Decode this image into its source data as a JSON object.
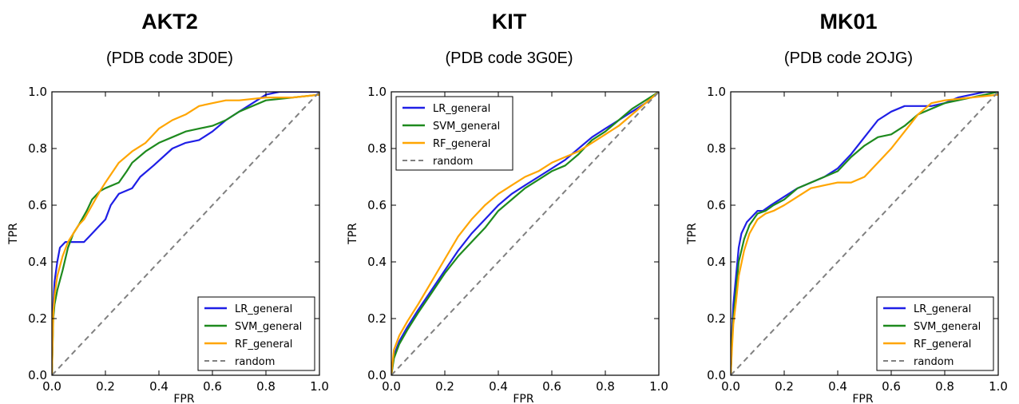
{
  "colors": {
    "LR_general": "#1f1fe6",
    "SVM_general": "#1e8a1e",
    "RF_general": "#ffa500",
    "random": "#808080"
  },
  "chart_data": [
    {
      "type": "line",
      "title": "AKT2",
      "subtitle": "(PDB code 3D0E)",
      "xlabel": "FPR",
      "ylabel": "TPR",
      "xlim": [
        0,
        1
      ],
      "ylim": [
        0,
        1
      ],
      "xticks": [
        "0.0",
        "0.2",
        "0.4",
        "0.6",
        "0.8",
        "1.0"
      ],
      "yticks": [
        "0.0",
        "0.2",
        "0.4",
        "0.6",
        "0.8",
        "1.0"
      ],
      "legend_position": "lower-right",
      "series": [
        {
          "name": "LR_general",
          "x": [
            0,
            0.005,
            0.01,
            0.02,
            0.03,
            0.05,
            0.07,
            0.1,
            0.12,
            0.14,
            0.17,
            0.2,
            0.22,
            0.25,
            0.3,
            0.33,
            0.38,
            0.45,
            0.5,
            0.55,
            0.6,
            0.65,
            0.7,
            0.75,
            0.8,
            0.85,
            1.0
          ],
          "y": [
            0,
            0.25,
            0.33,
            0.4,
            0.45,
            0.47,
            0.47,
            0.47,
            0.47,
            0.49,
            0.52,
            0.55,
            0.6,
            0.64,
            0.66,
            0.7,
            0.74,
            0.8,
            0.82,
            0.83,
            0.86,
            0.9,
            0.93,
            0.96,
            0.99,
            1.0,
            1.0
          ]
        },
        {
          "name": "SVM_general",
          "x": [
            0,
            0.005,
            0.01,
            0.02,
            0.04,
            0.06,
            0.08,
            0.1,
            0.13,
            0.15,
            0.18,
            0.2,
            0.25,
            0.28,
            0.3,
            0.35,
            0.4,
            0.45,
            0.5,
            0.55,
            0.6,
            0.65,
            0.7,
            0.8,
            0.9,
            1.0
          ],
          "y": [
            0,
            0.2,
            0.25,
            0.3,
            0.37,
            0.45,
            0.5,
            0.53,
            0.58,
            0.62,
            0.65,
            0.66,
            0.68,
            0.72,
            0.75,
            0.79,
            0.82,
            0.84,
            0.86,
            0.87,
            0.88,
            0.9,
            0.93,
            0.97,
            0.98,
            0.99
          ]
        },
        {
          "name": "RF_general",
          "x": [
            0,
            0.005,
            0.01,
            0.02,
            0.04,
            0.06,
            0.08,
            0.1,
            0.12,
            0.15,
            0.18,
            0.2,
            0.25,
            0.3,
            0.35,
            0.4,
            0.45,
            0.5,
            0.55,
            0.6,
            0.65,
            0.7,
            0.8,
            0.9,
            1.0
          ],
          "y": [
            0,
            0.22,
            0.28,
            0.35,
            0.42,
            0.47,
            0.5,
            0.53,
            0.55,
            0.6,
            0.65,
            0.68,
            0.75,
            0.79,
            0.82,
            0.87,
            0.9,
            0.92,
            0.95,
            0.96,
            0.97,
            0.97,
            0.98,
            0.98,
            0.99
          ]
        },
        {
          "name": "random",
          "x": [
            0,
            1
          ],
          "y": [
            0,
            1
          ]
        }
      ]
    },
    {
      "type": "line",
      "title": "KIT",
      "subtitle": "(PDB code 3G0E)",
      "xlabel": "FPR",
      "ylabel": "TPR",
      "xlim": [
        0,
        1
      ],
      "ylim": [
        0,
        1
      ],
      "xticks": [
        "0.0",
        "0.2",
        "0.4",
        "0.6",
        "0.8",
        "1.0"
      ],
      "yticks": [
        "0.0",
        "0.2",
        "0.4",
        "0.6",
        "0.8",
        "1.0"
      ],
      "legend_position": "upper-left",
      "series": [
        {
          "name": "LR_general",
          "x": [
            0,
            0.01,
            0.03,
            0.06,
            0.1,
            0.15,
            0.2,
            0.25,
            0.3,
            0.35,
            0.4,
            0.45,
            0.5,
            0.55,
            0.6,
            0.65,
            0.7,
            0.75,
            0.8,
            0.85,
            0.9,
            0.95,
            1.0
          ],
          "y": [
            0,
            0.07,
            0.12,
            0.17,
            0.23,
            0.3,
            0.37,
            0.44,
            0.5,
            0.55,
            0.6,
            0.64,
            0.67,
            0.7,
            0.73,
            0.76,
            0.8,
            0.84,
            0.87,
            0.9,
            0.93,
            0.96,
            1.0
          ]
        },
        {
          "name": "SVM_general",
          "x": [
            0,
            0.01,
            0.03,
            0.06,
            0.1,
            0.15,
            0.2,
            0.25,
            0.3,
            0.35,
            0.4,
            0.45,
            0.5,
            0.55,
            0.6,
            0.65,
            0.7,
            0.75,
            0.8,
            0.85,
            0.9,
            0.95,
            1.0
          ],
          "y": [
            0,
            0.06,
            0.11,
            0.16,
            0.22,
            0.29,
            0.36,
            0.42,
            0.47,
            0.52,
            0.58,
            0.62,
            0.66,
            0.69,
            0.72,
            0.74,
            0.78,
            0.83,
            0.86,
            0.9,
            0.94,
            0.97,
            1.0
          ]
        },
        {
          "name": "RF_general",
          "x": [
            0,
            0.01,
            0.03,
            0.06,
            0.1,
            0.15,
            0.2,
            0.25,
            0.3,
            0.35,
            0.4,
            0.45,
            0.5,
            0.55,
            0.6,
            0.65,
            0.7,
            0.75,
            0.8,
            0.85,
            0.9,
            0.95,
            1.0
          ],
          "y": [
            0,
            0.09,
            0.14,
            0.19,
            0.25,
            0.33,
            0.41,
            0.49,
            0.55,
            0.6,
            0.64,
            0.67,
            0.7,
            0.72,
            0.75,
            0.77,
            0.79,
            0.82,
            0.85,
            0.88,
            0.92,
            0.96,
            1.0
          ]
        },
        {
          "name": "random",
          "x": [
            0,
            1
          ],
          "y": [
            0,
            1
          ]
        }
      ]
    },
    {
      "type": "line",
      "title": "MK01",
      "subtitle": "(PDB code 2OJG)",
      "xlabel": "FPR",
      "ylabel": "TPR",
      "xlim": [
        0,
        1
      ],
      "ylim": [
        0,
        1
      ],
      "xticks": [
        "0.0",
        "0.2",
        "0.4",
        "0.6",
        "0.8",
        "1.0"
      ],
      "yticks": [
        "0.0",
        "0.2",
        "0.4",
        "0.6",
        "0.8",
        "1.0"
      ],
      "legend_position": "lower-right",
      "series": [
        {
          "name": "LR_general",
          "x": [
            0,
            0.005,
            0.01,
            0.02,
            0.03,
            0.04,
            0.06,
            0.08,
            0.1,
            0.12,
            0.15,
            0.2,
            0.25,
            0.3,
            0.35,
            0.4,
            0.45,
            0.5,
            0.55,
            0.6,
            0.65,
            0.7,
            0.75,
            0.8,
            0.85,
            0.9,
            0.95,
            1.0
          ],
          "y": [
            0,
            0.15,
            0.25,
            0.35,
            0.45,
            0.5,
            0.54,
            0.56,
            0.58,
            0.58,
            0.6,
            0.63,
            0.66,
            0.68,
            0.7,
            0.73,
            0.78,
            0.84,
            0.9,
            0.93,
            0.95,
            0.95,
            0.95,
            0.96,
            0.98,
            0.99,
            1.0,
            1.0
          ]
        },
        {
          "name": "SVM_general",
          "x": [
            0,
            0.005,
            0.01,
            0.02,
            0.03,
            0.05,
            0.07,
            0.1,
            0.13,
            0.16,
            0.2,
            0.25,
            0.3,
            0.35,
            0.4,
            0.45,
            0.5,
            0.55,
            0.6,
            0.65,
            0.7,
            0.8,
            0.9,
            0.95,
            1.0
          ],
          "y": [
            0,
            0.12,
            0.2,
            0.3,
            0.4,
            0.48,
            0.53,
            0.57,
            0.58,
            0.6,
            0.62,
            0.66,
            0.68,
            0.7,
            0.72,
            0.77,
            0.81,
            0.84,
            0.85,
            0.88,
            0.92,
            0.96,
            0.98,
            0.99,
            1.0
          ]
        },
        {
          "name": "RF_general",
          "x": [
            0,
            0.005,
            0.01,
            0.02,
            0.03,
            0.05,
            0.07,
            0.1,
            0.13,
            0.16,
            0.2,
            0.25,
            0.3,
            0.35,
            0.4,
            0.45,
            0.5,
            0.55,
            0.6,
            0.65,
            0.7,
            0.75,
            0.8,
            0.9,
            1.0
          ],
          "y": [
            0,
            0.1,
            0.18,
            0.26,
            0.35,
            0.44,
            0.5,
            0.55,
            0.57,
            0.58,
            0.6,
            0.63,
            0.66,
            0.67,
            0.68,
            0.68,
            0.7,
            0.75,
            0.8,
            0.86,
            0.92,
            0.96,
            0.97,
            0.98,
            0.99
          ]
        },
        {
          "name": "random",
          "x": [
            0,
            1
          ],
          "y": [
            0,
            1
          ]
        }
      ]
    }
  ]
}
